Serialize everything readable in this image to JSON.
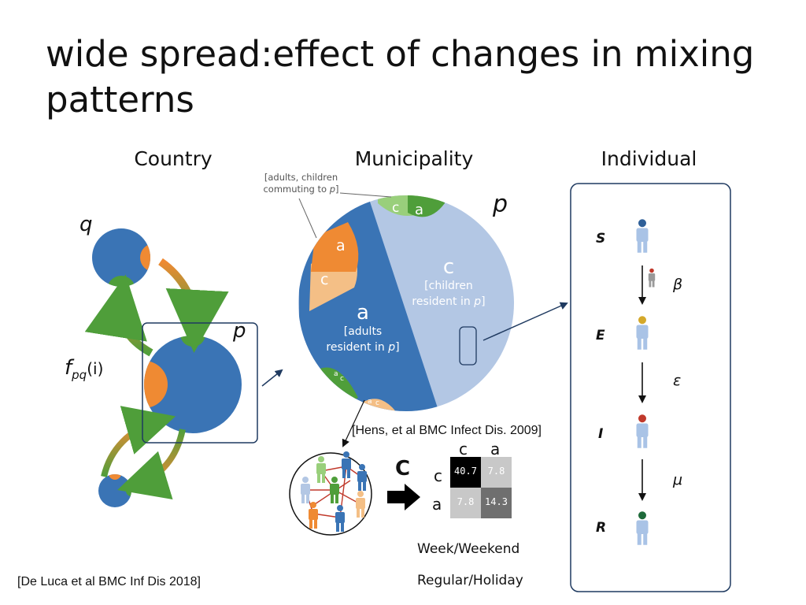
{
  "title": "wide spread:effect of changes in mixing patterns",
  "sections": {
    "country": "Country",
    "municipality": "Municipality",
    "individual": "Individual"
  },
  "country": {
    "node_q": "q",
    "node_p": "p",
    "flow_f": "f",
    "flow_sub": "pq",
    "flow_arg": "(i)"
  },
  "municipality": {
    "p_label": "p",
    "commuting_note_line1": "[adults, children",
    "commuting_note_line2": "commuting to ",
    "commuting_note_p": "p",
    "commuting_note_end": "]",
    "c_big": "c",
    "children_line1": "[children",
    "children_line2": "resident in ",
    "adults_big": "a",
    "adults_line1": "[adults",
    "adults_line2": "resident in ",
    "p_italic": "p",
    "close_bracket": "]",
    "seg_a": "a",
    "seg_c": "c"
  },
  "contact_matrix": {
    "label": "C",
    "headers": [
      "c",
      "a"
    ],
    "values": [
      [
        "40.7",
        "7.8"
      ],
      [
        "7.8",
        "14.3"
      ]
    ],
    "reference": "[Hens, et al BMC Infect Dis. 2009]"
  },
  "options": {
    "week": "Week/Weekend",
    "holiday": "Regular/Holiday"
  },
  "individual": {
    "S": "S",
    "E": "E",
    "I": "I",
    "R": "R",
    "beta": "β",
    "epsilon": "ε",
    "mu": "μ"
  },
  "reference_deluca": "[De Luca et al BMC Inf Dis 2018]",
  "colors": {
    "blue": "#3a74b5",
    "light_blue": "#b3c7e4",
    "orange": "#ef8a33",
    "light_orange": "#f4bf86",
    "green": "#4f9e3a",
    "light_green": "#99cf7b",
    "person": "#a9c3e6",
    "dark_person": "#2e5f98"
  }
}
